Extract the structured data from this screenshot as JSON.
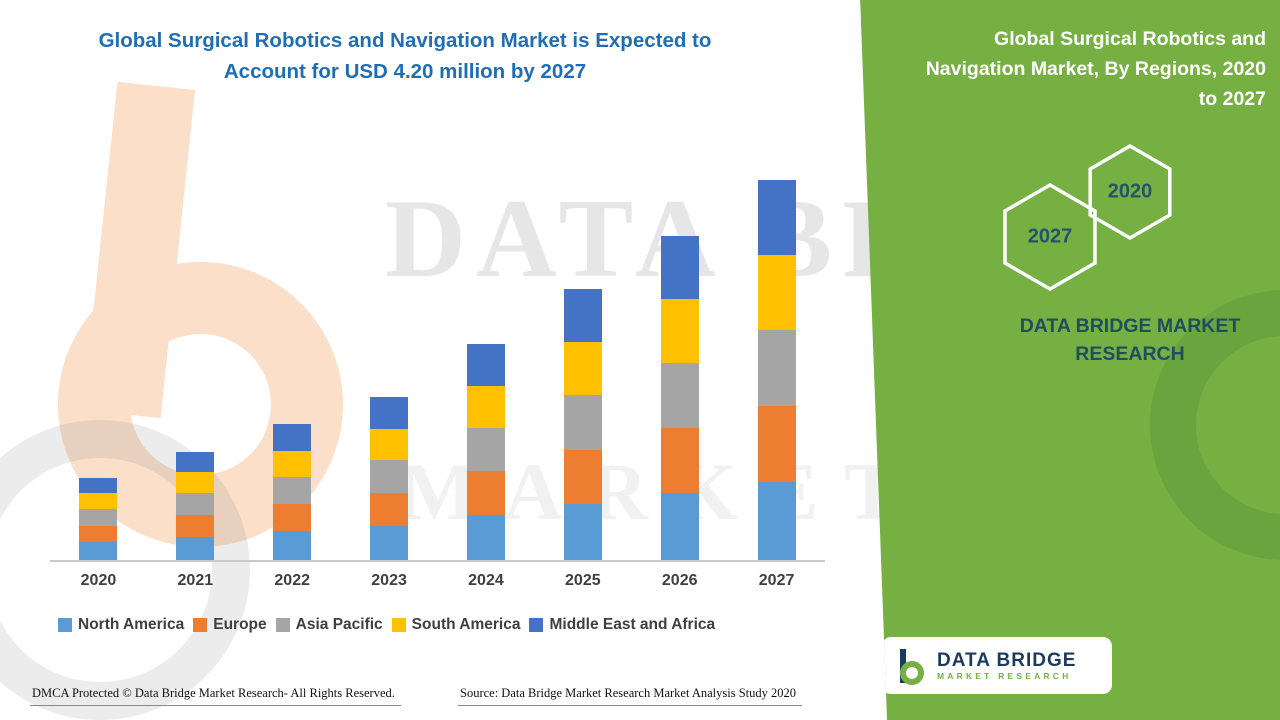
{
  "chart_data": {
    "type": "bar",
    "variant": "stacked",
    "title": "Global Surgical Robotics and Navigation Market is Expected to Account for USD 4.20 million by 2027",
    "categories": [
      "2020",
      "2021",
      "2022",
      "2023",
      "2024",
      "2025",
      "2026",
      "2027"
    ],
    "series": [
      {
        "name": "North America",
        "color": "#5b9bd5",
        "values": [
          0.2,
          0.26,
          0.32,
          0.38,
          0.5,
          0.62,
          0.74,
          0.86
        ]
      },
      {
        "name": "Europe",
        "color": "#ed7d31",
        "values": [
          0.18,
          0.24,
          0.3,
          0.36,
          0.48,
          0.6,
          0.72,
          0.84
        ]
      },
      {
        "name": "Asia Pacific",
        "color": "#a5a5a5",
        "values": [
          0.18,
          0.24,
          0.3,
          0.36,
          0.48,
          0.6,
          0.72,
          0.84
        ]
      },
      {
        "name": "South America",
        "color": "#ffc000",
        "values": [
          0.18,
          0.23,
          0.29,
          0.35,
          0.47,
          0.59,
          0.71,
          0.83
        ]
      },
      {
        "name": "Middle East and Africa",
        "color": "#4472c4",
        "values": [
          0.17,
          0.23,
          0.29,
          0.35,
          0.46,
          0.58,
          0.69,
          0.83
        ]
      }
    ],
    "xlabel": "",
    "ylabel": "",
    "ylim": [
      0,
      4.2
    ],
    "grid": false,
    "legend_position": "bottom",
    "totals": [
      0.91,
      1.2,
      1.5,
      1.8,
      2.39,
      2.99,
      3.58,
      4.2
    ]
  },
  "sidebar": {
    "title": "Global Surgical Robotics and Navigation Market, By Regions, 2020 to 2027",
    "hexagon_front": "2027",
    "hexagon_back": "2020",
    "brand": "DATA BRIDGE MARKET RESEARCH",
    "logo": {
      "name": "DATA BRIDGE",
      "sub": "MARKET RESEARCH"
    },
    "accent_green": "#76b043",
    "brand_text_color": "#1f4e5f"
  },
  "watermark": {
    "line1": "DATA BRIDGE",
    "line2": "MARKET RESEARCH"
  },
  "footer": {
    "dmca": "DMCA Protected © Data Bridge Market Research- All Rights Reserved.",
    "source": "Source: Data Bridge Market Research Market Analysis Study 2020"
  },
  "colors": {
    "title_blue": "#1f6eb5",
    "panel_green": "#76b043",
    "axis_gray": "#c9c9c9",
    "label_gray": "#3f3f3f"
  }
}
